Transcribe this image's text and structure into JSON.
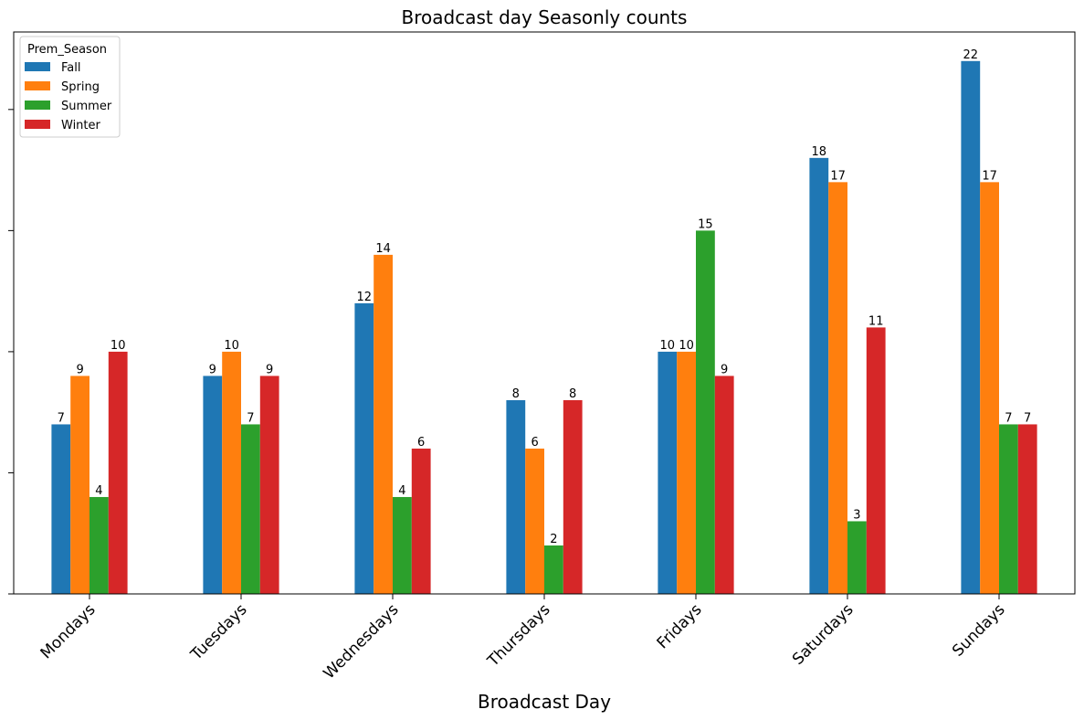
{
  "chart_data": {
    "type": "bar",
    "title": "Broadcast day Seasonly counts",
    "xlabel": "Broadcast Day",
    "ylabel": "",
    "ylim": [
      0,
      23.2
    ],
    "yticks": [
      0,
      5,
      10,
      15,
      20
    ],
    "ytick_labels_shown": false,
    "grid": false,
    "legend": {
      "title": "Prem_Season",
      "placement": "top-left"
    },
    "categories": [
      "Mondays",
      "Tuesdays",
      "Wednesdays",
      "Thursdays",
      "Fridays",
      "Saturdays",
      "Sundays"
    ],
    "series": [
      {
        "name": "Fall",
        "color": "#1f77b4",
        "values": [
          7,
          9,
          12,
          8,
          10,
          18,
          22
        ]
      },
      {
        "name": "Spring",
        "color": "#ff7f0e",
        "values": [
          9,
          10,
          14,
          6,
          10,
          17,
          17
        ]
      },
      {
        "name": "Summer",
        "color": "#2ca02c",
        "values": [
          4,
          7,
          4,
          2,
          15,
          3,
          7
        ]
      },
      {
        "name": "Winter",
        "color": "#d62728",
        "values": [
          10,
          9,
          6,
          8,
          9,
          11,
          7
        ]
      }
    ]
  }
}
